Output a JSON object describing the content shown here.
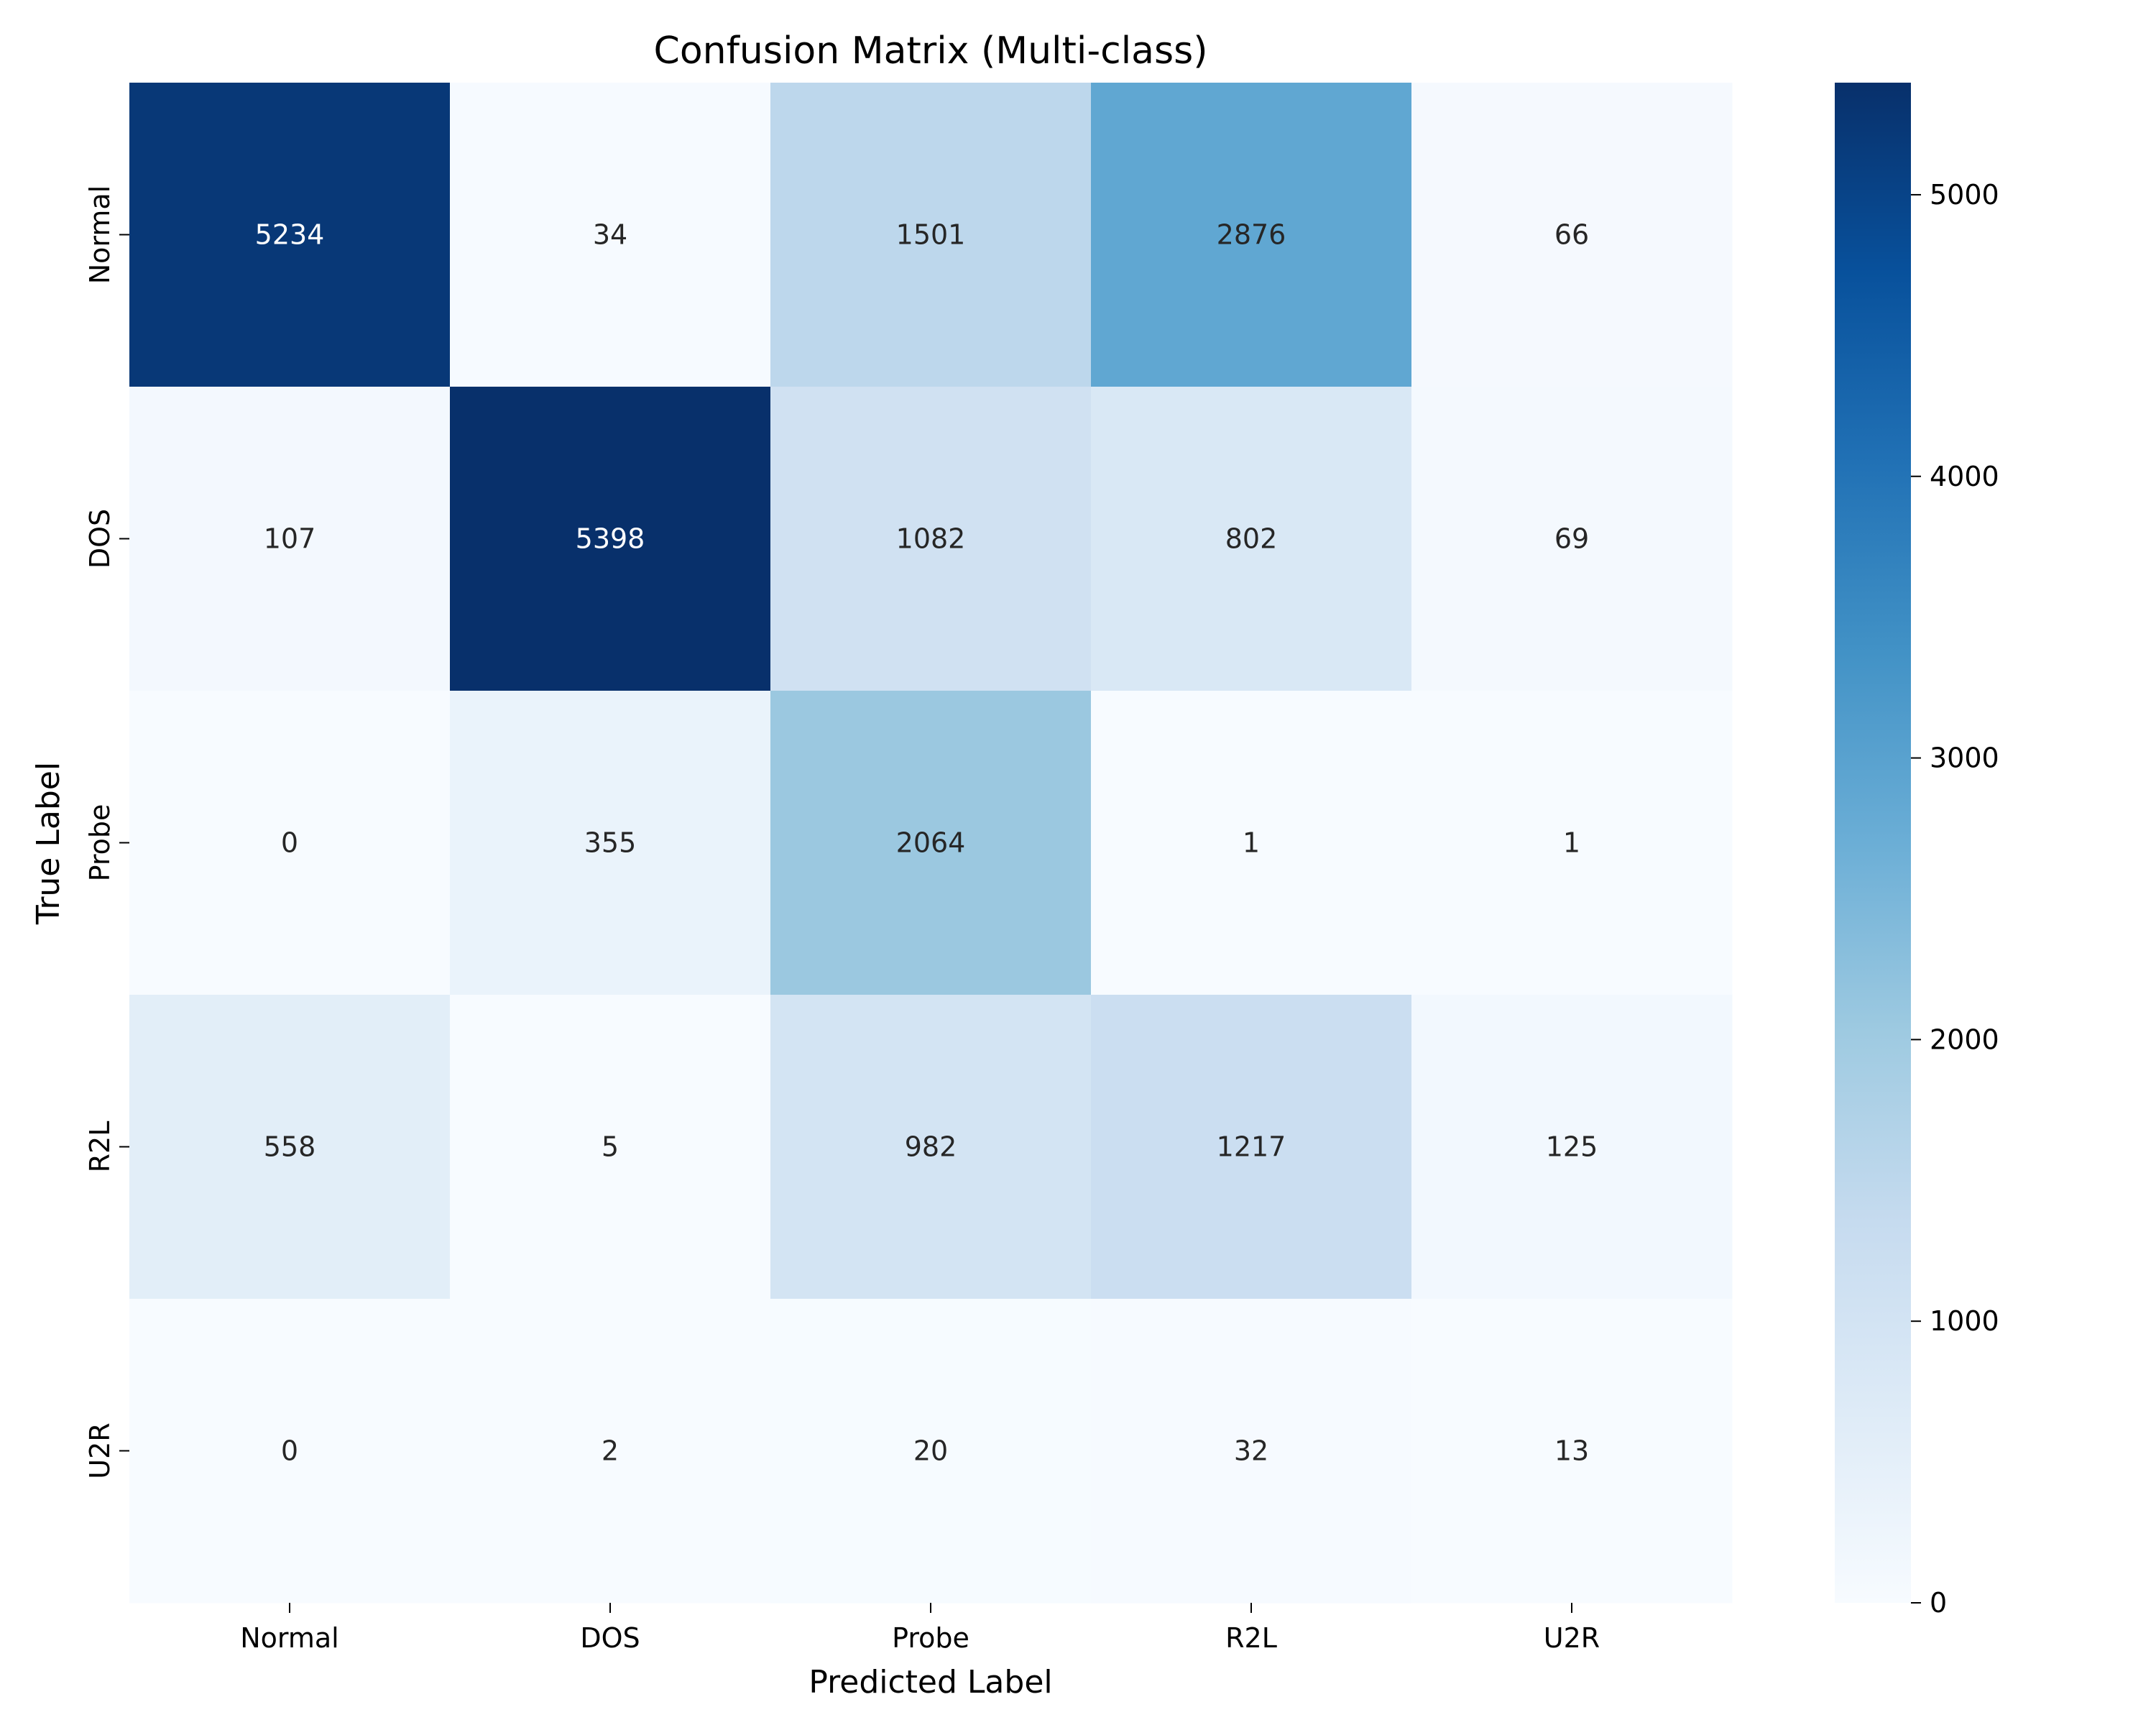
{
  "chart_data": {
    "type": "heatmap",
    "title": "Confusion Matrix (Multi-class)",
    "xlabel": "Predicted Label",
    "ylabel": "True Label",
    "x_categories": [
      "Normal",
      "DOS",
      "Probe",
      "R2L",
      "U2R"
    ],
    "y_categories": [
      "Normal",
      "DOS",
      "Probe",
      "R2L",
      "U2R"
    ],
    "values": [
      [
        5234,
        34,
        1501,
        2876,
        66
      ],
      [
        107,
        5398,
        1082,
        802,
        69
      ],
      [
        0,
        355,
        2064,
        1,
        1
      ],
      [
        558,
        5,
        982,
        1217,
        125
      ],
      [
        0,
        2,
        20,
        32,
        13
      ]
    ],
    "colormap": "Blues",
    "colorbar": {
      "range": [
        0,
        5398
      ],
      "ticks": [
        0,
        1000,
        2000,
        3000,
        4000,
        5000
      ]
    },
    "grid": false,
    "legend": "colorbar-right"
  }
}
